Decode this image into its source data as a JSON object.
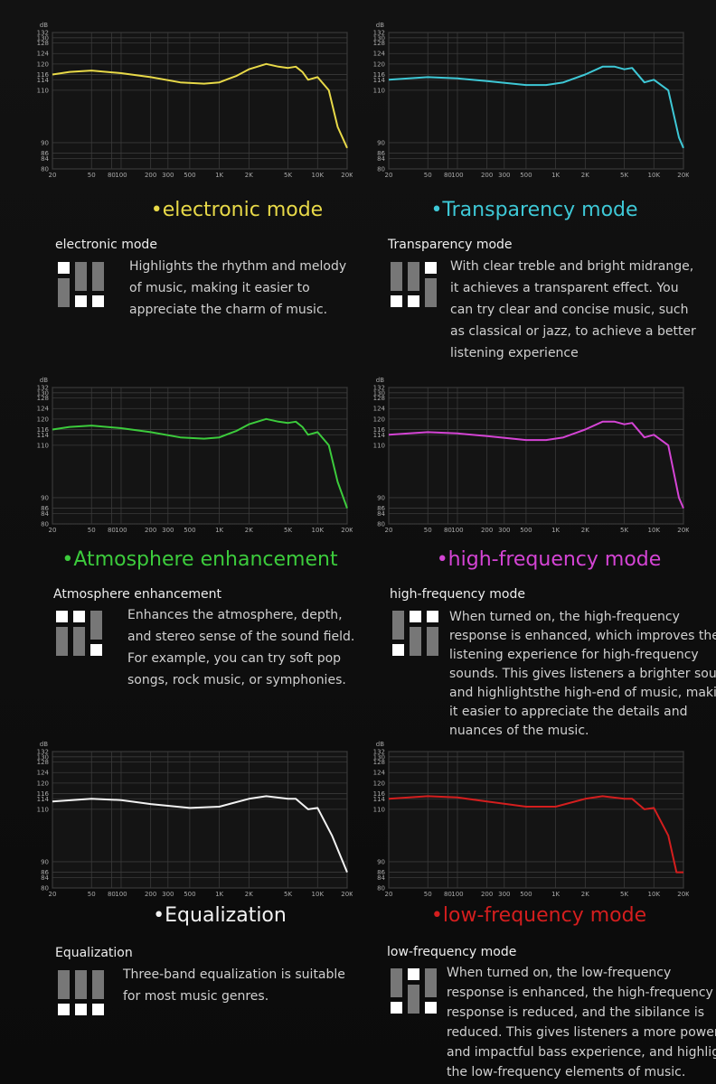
{
  "chart_data": [
    {
      "type": "line",
      "title": "electronic mode",
      "y_label": "dB",
      "color": "#e8d948",
      "xscale": "log",
      "grid": true,
      "x": [
        20,
        30,
        50,
        100,
        200,
        400,
        700,
        1000,
        1500,
        2000,
        3000,
        4000,
        5000,
        6000,
        7000,
        8000,
        10000,
        13000,
        16000,
        20000
      ],
      "values": [
        116,
        117,
        117.5,
        116.5,
        115,
        113,
        112.5,
        113,
        115.5,
        118,
        120,
        119,
        118.5,
        119,
        117,
        114,
        115,
        110,
        96,
        88
      ],
      "xlim": [
        20,
        20000
      ],
      "ylim": [
        80,
        132
      ],
      "xticks": [
        20,
        50,
        80,
        100,
        200,
        300,
        500,
        {
          "value": 1000,
          "label": "1K"
        },
        {
          "value": 2000,
          "label": "2K"
        },
        {
          "value": 5000,
          "label": "5K"
        },
        {
          "value": 10000,
          "label": "10K"
        },
        {
          "value": 20000,
          "label": "20K"
        }
      ],
      "yticks": [
        80,
        84,
        86,
        90,
        110,
        114,
        116,
        120,
        124,
        128,
        130,
        132
      ]
    },
    {
      "type": "line",
      "title": "Transparency mode",
      "y_label": "dB",
      "color": "#3ec8d6",
      "xscale": "log",
      "grid": true,
      "x": [
        20,
        50,
        100,
        200,
        500,
        800,
        1200,
        2000,
        3000,
        4000,
        5000,
        6000,
        8000,
        10000,
        14000,
        18000,
        20000
      ],
      "values": [
        114,
        115,
        114.5,
        113.5,
        112,
        112,
        113,
        116,
        119,
        119,
        118,
        118.5,
        113,
        114,
        110,
        92,
        88
      ],
      "xlim": [
        20,
        20000
      ],
      "ylim": [
        80,
        132
      ],
      "xticks": [
        20,
        50,
        80,
        100,
        200,
        300,
        500,
        {
          "value": 1000,
          "label": "1K"
        },
        {
          "value": 2000,
          "label": "2K"
        },
        {
          "value": 5000,
          "label": "5K"
        },
        {
          "value": 10000,
          "label": "10K"
        },
        {
          "value": 20000,
          "label": "20K"
        }
      ],
      "yticks": [
        80,
        84,
        86,
        90,
        110,
        114,
        116,
        120,
        124,
        128,
        130,
        132
      ]
    },
    {
      "type": "line",
      "title": "Atmosphere enhancement",
      "y_label": "dB",
      "color": "#3ccb3c",
      "xscale": "log",
      "grid": true,
      "x": [
        20,
        30,
        50,
        100,
        200,
        400,
        700,
        1000,
        1500,
        2000,
        3000,
        4000,
        5000,
        6000,
        7000,
        8000,
        10000,
        13000,
        16000,
        20000
      ],
      "values": [
        116,
        117,
        117.5,
        116.5,
        115,
        113,
        112.5,
        113,
        115.5,
        118,
        120,
        119,
        118.5,
        119,
        117,
        114,
        115,
        110,
        96,
        86
      ],
      "xlim": [
        20,
        20000
      ],
      "ylim": [
        80,
        132
      ],
      "xticks": [
        20,
        50,
        80,
        100,
        200,
        300,
        500,
        {
          "value": 1000,
          "label": "1K"
        },
        {
          "value": 2000,
          "label": "2K"
        },
        {
          "value": 5000,
          "label": "5K"
        },
        {
          "value": 10000,
          "label": "10K"
        },
        {
          "value": 20000,
          "label": "20K"
        }
      ],
      "yticks": [
        80,
        84,
        86,
        90,
        110,
        114,
        116,
        120,
        124,
        128,
        130,
        132
      ]
    },
    {
      "type": "line",
      "title": "high-frequency mode",
      "y_label": "dB",
      "color": "#d444d4",
      "xscale": "log",
      "grid": true,
      "x": [
        20,
        50,
        100,
        200,
        500,
        800,
        1200,
        2000,
        3000,
        4000,
        5000,
        6000,
        8000,
        10000,
        14000,
        18000,
        20000
      ],
      "values": [
        114,
        115,
        114.5,
        113.5,
        112,
        112,
        113,
        116,
        119,
        119,
        118,
        118.5,
        113,
        114,
        110,
        90,
        86
      ],
      "xlim": [
        20,
        20000
      ],
      "ylim": [
        80,
        132
      ],
      "xticks": [
        20,
        50,
        80,
        100,
        200,
        300,
        500,
        {
          "value": 1000,
          "label": "1K"
        },
        {
          "value": 2000,
          "label": "2K"
        },
        {
          "value": 5000,
          "label": "5K"
        },
        {
          "value": 10000,
          "label": "10K"
        },
        {
          "value": 20000,
          "label": "20K"
        }
      ],
      "yticks": [
        80,
        84,
        86,
        90,
        110,
        114,
        116,
        120,
        124,
        128,
        130,
        132
      ]
    },
    {
      "type": "line",
      "title": "Equalization",
      "y_label": "dB",
      "color": "#f2f2f2",
      "xscale": "log",
      "grid": true,
      "x": [
        20,
        50,
        100,
        200,
        500,
        1000,
        2000,
        3000,
        5000,
        6000,
        8000,
        10000,
        14000,
        20000
      ],
      "values": [
        113,
        114,
        113.5,
        112,
        110.5,
        111,
        114,
        115,
        114,
        114,
        110,
        110.5,
        100,
        86
      ],
      "xlim": [
        20,
        20000
      ],
      "ylim": [
        80,
        132
      ],
      "xticks": [
        20,
        50,
        80,
        100,
        200,
        300,
        500,
        {
          "value": 1000,
          "label": "1K"
        },
        {
          "value": 2000,
          "label": "2K"
        },
        {
          "value": 5000,
          "label": "5K"
        },
        {
          "value": 10000,
          "label": "10K"
        },
        {
          "value": 20000,
          "label": "20K"
        }
      ],
      "yticks": [
        80,
        84,
        86,
        90,
        110,
        114,
        116,
        120,
        124,
        128,
        130,
        132
      ]
    },
    {
      "type": "line",
      "title": "low-frequency mode",
      "y_label": "dB",
      "color": "#d41e1e",
      "xscale": "log",
      "grid": true,
      "x": [
        20,
        50,
        100,
        200,
        500,
        1000,
        2000,
        3000,
        5000,
        6000,
        8000,
        10000,
        14000,
        17000,
        20000
      ],
      "values": [
        114,
        115,
        114.5,
        113,
        111,
        111,
        114,
        115,
        114,
        114,
        110,
        110.5,
        100,
        86,
        86
      ],
      "xlim": [
        20,
        20000
      ],
      "ylim": [
        80,
        132
      ],
      "xticks": [
        20,
        50,
        80,
        100,
        200,
        300,
        500,
        {
          "value": 1000,
          "label": "1K"
        },
        {
          "value": 2000,
          "label": "2K"
        },
        {
          "value": 5000,
          "label": "5K"
        },
        {
          "value": 10000,
          "label": "10K"
        },
        {
          "value": 20000,
          "label": "20K"
        }
      ],
      "yticks": [
        80,
        84,
        86,
        90,
        110,
        114,
        116,
        120,
        124,
        128,
        130,
        132
      ]
    }
  ],
  "panels": [
    {
      "heading": "electronic mode",
      "lines": [
        "Highlights the rhythm and melody",
        "of music, making it easier to",
        "appreciate the charm of music."
      ]
    },
    {
      "heading": "Transparency mode",
      "lines": [
        "With clear treble and bright midrange,",
        "it achieves a transparent effect. You",
        "can try clear and concise music, such",
        "as classical or jazz, to achieve a better",
        "listening experience"
      ]
    },
    {
      "heading": "Atmosphere enhancement",
      "lines": [
        "Enhances the atmosphere, depth,",
        "and stereo sense of the sound field.",
        "For example, you can try soft pop",
        "songs, rock music, or symphonies."
      ]
    },
    {
      "heading": "high-frequency mode",
      "lines": [
        "When turned on, the high-frequency",
        "response is enhanced, which improves the",
        "listening experience for high-frequency",
        "sounds. This gives listeners a brighter sound,",
        "and highlightsthe high-end of music, making",
        "it easier to appreciate the details and",
        "nuances of the music."
      ]
    },
    {
      "heading": "Equalization",
      "lines": [
        "Three-band equalization is suitable",
        "for most music genres."
      ]
    },
    {
      "heading": "low-frequency mode",
      "lines": [
        "When turned on, the low-frequency",
        "response is enhanced, the high-frequency",
        "response is reduced, and the sibilance is",
        "reduced. This gives listeners a more powerful",
        "and impactful bass experience, and highlights",
        "the low-frequency elements of music."
      ]
    }
  ]
}
